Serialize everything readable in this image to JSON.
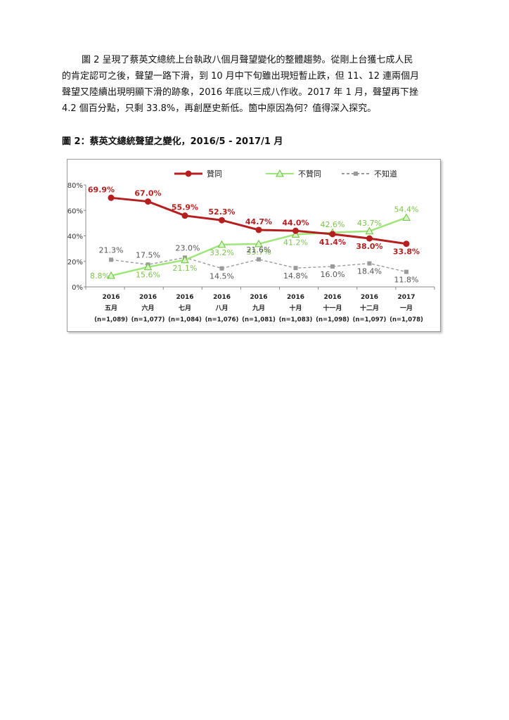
{
  "paragraph": {
    "lines": [
      "圖 2 呈現了蔡英文總統上台執政八個月聲望變化的整體趨勢。從剛上台獲七成人民",
      "的肯定認可之後，聲望一路下滑，到 10 月中下旬雖出現短暫止跌，但 11、12 連兩個月",
      "聲望又陸續出現明顯下滑的跡象，2016 年底以三成八作收。2017 年 1 月，聲望再下挫",
      "4.2 個百分點，只剩 33.8%，再創歷史新低。箇中原因為何？值得深入探究。"
    ]
  },
  "figure_title": "圖 2：蔡英文總統聲望之變化，2016/5 - 2017/1 月",
  "chart_data": {
    "type": "line",
    "ylim": [
      0,
      80
    ],
    "y_ticks": [
      "0%",
      "20%",
      "40%",
      "60%",
      "80%"
    ],
    "y_tick_values": [
      0,
      20,
      40,
      60,
      80
    ],
    "categories": [
      {
        "year": "2016",
        "month": "五月",
        "n": "(n=1,089)"
      },
      {
        "year": "2016",
        "month": "六月",
        "n": "(n=1,077)"
      },
      {
        "year": "2016",
        "month": "七月",
        "n": "(n=1,084)"
      },
      {
        "year": "2016",
        "month": "八月",
        "n": "(n=1,076)"
      },
      {
        "year": "2016",
        "month": "九月",
        "n": "(n=1,081)"
      },
      {
        "year": "2016",
        "month": "十月",
        "n": "(n=1,083)"
      },
      {
        "year": "2016",
        "month": "十一月",
        "n": "(n=1,098)"
      },
      {
        "year": "2016",
        "month": "十二月",
        "n": "(n=1,097)"
      },
      {
        "year": "2017",
        "month": "一月",
        "n": "(n=1,078)"
      }
    ],
    "legend_position": "top",
    "series": [
      {
        "name": "贊同",
        "color": "#b51f1f",
        "values": [
          69.9,
          67.0,
          55.9,
          52.3,
          44.7,
          44.0,
          41.4,
          38.0,
          33.8
        ],
        "labels": [
          "69.9%",
          "67.0%",
          "55.9%",
          "52.3%",
          "44.7%",
          "44.0%",
          "41.4%",
          "38.0%",
          "33.8%"
        ]
      },
      {
        "name": "不贊同",
        "color": "#9ee67a",
        "label_color": "#7cc44e",
        "values": [
          8.8,
          15.6,
          21.1,
          33.2,
          33.7,
          41.2,
          42.6,
          43.7,
          54.4
        ],
        "labels": [
          "8.8%",
          "15.6%",
          "21.1%",
          "33.2%",
          "33.7%",
          "41.2%",
          "42.6%",
          "43.7%",
          "54.4%"
        ]
      },
      {
        "name": "不知道",
        "color": "#9a9a9a",
        "label_color": "#555555",
        "values": [
          21.3,
          17.5,
          23.0,
          14.5,
          21.6,
          14.8,
          16.0,
          18.4,
          11.8
        ],
        "labels": [
          "21.3%",
          "17.5%",
          "23.0%",
          "14.5%",
          "21.6%",
          "14.8%",
          "16.0%",
          "18.4%",
          "11.8%"
        ]
      }
    ]
  }
}
